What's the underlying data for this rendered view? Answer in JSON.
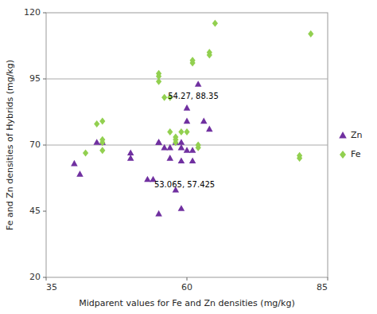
{
  "chart_data": {
    "type": "scatter",
    "xlabel": "Midparent values for Fe and Zn densities (mg/kg)",
    "ylabel": "Fe and Zn densities of Hybrids (mg/kg)",
    "xlim": [
      35,
      85
    ],
    "ylim": [
      20,
      120
    ],
    "xticks": [
      35,
      60,
      85
    ],
    "yticks": [
      20,
      45,
      70,
      95,
      120
    ],
    "hlines": [
      70,
      95
    ],
    "annotations": [
      {
        "text": "54.27, 88.35",
        "x": 55.5,
        "y": 88.35
      },
      {
        "text": "53.065, 57.425",
        "x": 53.065,
        "y": 57.425
      }
    ],
    "grid": false,
    "legend": "right",
    "series": [
      {
        "name": "Zn",
        "color": "#7030A0",
        "marker": "triangle",
        "x": [
          40,
          41,
          44,
          45,
          50,
          50,
          53,
          54,
          55,
          55,
          55,
          56,
          57,
          57,
          58,
          58,
          59,
          59,
          59,
          59,
          60,
          60,
          60,
          61,
          61,
          62,
          63,
          64
        ],
        "values": [
          63,
          59,
          71,
          71,
          65,
          67,
          57,
          57,
          44,
          71,
          71,
          69,
          65,
          69,
          53,
          71,
          46,
          64,
          71,
          69,
          68,
          84,
          79,
          64,
          68,
          93,
          79,
          76
        ]
      },
      {
        "name": "Fe",
        "color": "#92D050",
        "marker": "diamond",
        "x": [
          42,
          44,
          45,
          45,
          45,
          45,
          55,
          55,
          55,
          56,
          57,
          57,
          58,
          58,
          58,
          59,
          60,
          61,
          61,
          62,
          62,
          64,
          64,
          65,
          80,
          80,
          82
        ],
        "values": [
          67,
          78,
          79,
          71,
          72,
          68,
          97,
          96,
          94,
          88,
          88,
          75,
          71,
          72,
          73,
          75,
          75,
          101,
          102,
          69,
          70,
          105,
          104,
          116,
          65,
          66,
          112
        ]
      }
    ]
  }
}
